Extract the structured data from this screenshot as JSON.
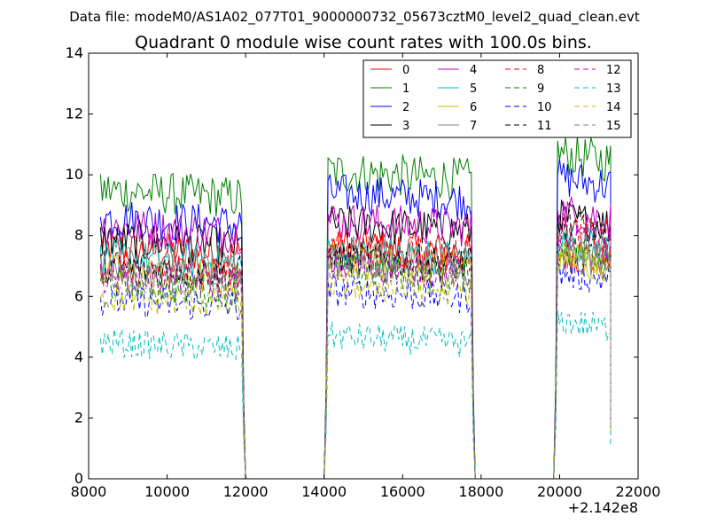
{
  "chart_data": {
    "type": "line",
    "suptitle": "Data file: modeM0/AS1A02_077T01_9000000732_05673cztM0_level2_quad_clean.evt",
    "title": "Quadrant 0 module wise count rates with 100.0s bins.",
    "xlabel": "",
    "ylabel": "",
    "xlim": [
      8000,
      22000
    ],
    "ylim": [
      0,
      14
    ],
    "x_ticks": [
      8000,
      10000,
      12000,
      14000,
      16000,
      18000,
      20000,
      22000
    ],
    "x_tick_labels": [
      "8000",
      "10000",
      "12000",
      "14000",
      "16000",
      "18000",
      "20000",
      "22000"
    ],
    "y_ticks": [
      0,
      2,
      4,
      6,
      8,
      10,
      12,
      14
    ],
    "y_tick_labels": [
      "0",
      "2",
      "4",
      "6",
      "8",
      "10",
      "12",
      "14"
    ],
    "x_offset_label": "+2.142e8",
    "grid": false,
    "legend_position": "top-right",
    "legend_columns": 4,
    "segments": [
      {
        "start": 8300,
        "end": 11900
      },
      {
        "start": 14100,
        "end": 17750
      },
      {
        "start": 19950,
        "end": 21300
      }
    ],
    "series": [
      {
        "name": "0",
        "color": "#ff0000",
        "style": "solid",
        "levels": [
          7.6,
          7.7,
          7.4
        ]
      },
      {
        "name": "1",
        "color": "#008000",
        "style": "solid",
        "levels": [
          9.5,
          10.1,
          10.7
        ]
      },
      {
        "name": "2",
        "color": "#0000ff",
        "style": "solid",
        "levels": [
          8.6,
          9.4,
          9.9
        ]
      },
      {
        "name": "3",
        "color": "#000000",
        "style": "solid",
        "levels": [
          7.9,
          8.4,
          8.6
        ]
      },
      {
        "name": "4",
        "color": "#bf00bf",
        "style": "solid",
        "levels": [
          8.3,
          8.5,
          8.8
        ]
      },
      {
        "name": "5",
        "color": "#00bfbf",
        "style": "solid",
        "levels": [
          7.3,
          7.5,
          7.8
        ]
      },
      {
        "name": "6",
        "color": "#bfbf00",
        "style": "solid",
        "levels": [
          6.8,
          7.2,
          7.3
        ]
      },
      {
        "name": "7",
        "color": "#808080",
        "style": "solid",
        "levels": [
          7.1,
          7.4,
          7.6
        ]
      },
      {
        "name": "8",
        "color": "#ff0000",
        "style": "dashed",
        "levels": [
          7.0,
          7.6,
          8.2
        ]
      },
      {
        "name": "9",
        "color": "#008000",
        "style": "dashed",
        "levels": [
          6.4,
          6.9,
          7.6
        ]
      },
      {
        "name": "10",
        "color": "#0000ff",
        "style": "dashed",
        "levels": [
          5.9,
          6.2,
          6.8
        ]
      },
      {
        "name": "11",
        "color": "#000000",
        "style": "dashed",
        "levels": [
          7.0,
          7.3,
          8.4
        ]
      },
      {
        "name": "12",
        "color": "#bf00bf",
        "style": "dashed",
        "levels": [
          6.7,
          7.0,
          8.0
        ]
      },
      {
        "name": "13",
        "color": "#00bfbf",
        "style": "dashed",
        "levels": [
          4.5,
          4.7,
          5.2
        ]
      },
      {
        "name": "14",
        "color": "#bfbf00",
        "style": "dashed",
        "levels": [
          6.0,
          6.4,
          7.3
        ]
      },
      {
        "name": "15",
        "color": "#808080",
        "style": "dashed",
        "levels": [
          6.6,
          6.9,
          7.4
        ]
      }
    ]
  }
}
